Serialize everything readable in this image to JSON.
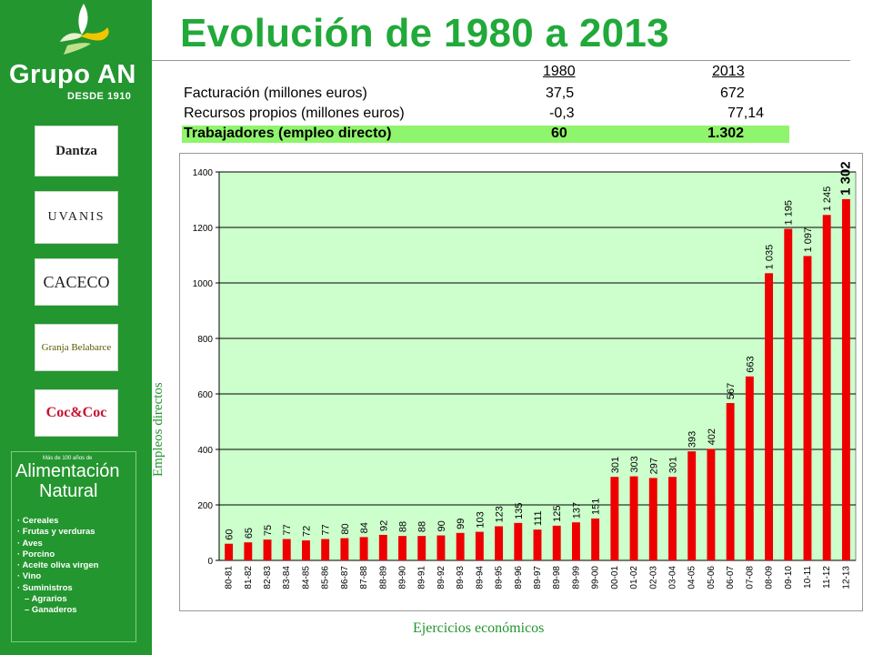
{
  "header": {
    "title": "Evolución de 1980 a 2013"
  },
  "sidebar": {
    "brand_name": "Grupo AN",
    "brand_since": "DESDE 1910",
    "brands": [
      {
        "label": "Dantza"
      },
      {
        "label": "UVANIS"
      },
      {
        "label": "CACECO"
      },
      {
        "label": "Granja Belabarce"
      },
      {
        "label": "Coc&Coc"
      }
    ],
    "alimentacion": {
      "small": "Más de 100 años de",
      "title_line1": "Alimentación",
      "title_line2": "Natural",
      "items": [
        "· Cereales",
        "· Frutas y verduras",
        "· Aves",
        "· Porcino",
        "· Aceite oliva virgen",
        "· Vino",
        "· Suministros",
        "  – Agrarios",
        "  – Ganaderos"
      ]
    }
  },
  "table": {
    "col1980": "1980",
    "col2013": "2013",
    "rows": [
      {
        "label": "Facturación  (millones euros)",
        "v1980": "37,5",
        "v2013": "672"
      },
      {
        "label": "Recursos propios (millones euros)",
        "v1980": "-0,3",
        "v2013": "77,14"
      },
      {
        "label": "Trabajadores (empleo directo)",
        "v1980": "60",
        "v2013": "1.302"
      }
    ]
  },
  "chart_data": {
    "type": "bar",
    "xlabel": "Ejercicios económicos",
    "ylabel": "Empleos directos",
    "ylim": [
      0,
      1400
    ],
    "yticks": [
      0,
      200,
      400,
      600,
      800,
      1000,
      1200,
      1400
    ],
    "grid": true,
    "colors": {
      "bar": "#ee0000",
      "plot_bg": "#ccffcc",
      "grid": "#000000"
    },
    "categories": [
      "80-81",
      "81-82",
      "82-83",
      "83-84",
      "84-85",
      "85-86",
      "86-87",
      "87-88",
      "88-89",
      "89-90",
      "89-91",
      "89-92",
      "89-93",
      "89-94",
      "89-95",
      "89-96",
      "89-97",
      "89-98",
      "89-99",
      "99-00",
      "00-01",
      "01-02",
      "02-03",
      "03-04",
      "04-05",
      "05-06",
      "06-07",
      "07-08",
      "08-09",
      "09-10",
      "10-11",
      "11-12",
      "12-13"
    ],
    "values": [
      60,
      65,
      75,
      77,
      72,
      77,
      80,
      84,
      92,
      88,
      88,
      90,
      99,
      103,
      123,
      135,
      111,
      125,
      137,
      151,
      301,
      303,
      297,
      301,
      393,
      402,
      567,
      663,
      1035,
      1195,
      1097,
      1245,
      1302
    ],
    "value_labels": [
      "60",
      "65",
      "75",
      "77",
      "72",
      "77",
      "80",
      "84",
      "92",
      "88",
      "88",
      "90",
      "99",
      "103",
      "123",
      "135",
      "111",
      "125",
      "137",
      "151",
      "301",
      "303",
      "297",
      "301",
      "393",
      "402",
      "567",
      "663",
      "1 035",
      "1 195",
      "1 097",
      "1 245",
      "1 302"
    ]
  }
}
